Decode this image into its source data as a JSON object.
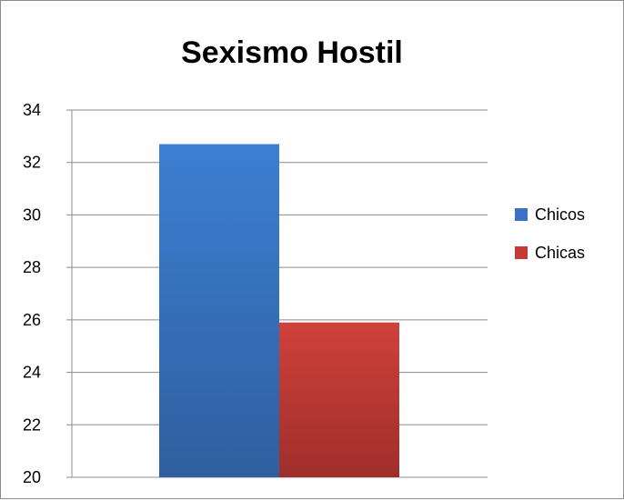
{
  "chart_data": {
    "type": "bar",
    "title": "Sexismo Hostil",
    "xlabel": "",
    "ylabel": "",
    "categories": [
      ""
    ],
    "series": [
      {
        "name": "Chicos",
        "values": [
          32.7
        ],
        "color": "#3a73c3"
      },
      {
        "name": "Chicas",
        "values": [
          25.9
        ],
        "color": "#c43b36"
      }
    ],
    "ylim": [
      20,
      34
    ],
    "yticks": [
      "20",
      "22",
      "24",
      "26",
      "28",
      "30",
      "32",
      "34"
    ],
    "grid": true,
    "legend_position": "right"
  }
}
